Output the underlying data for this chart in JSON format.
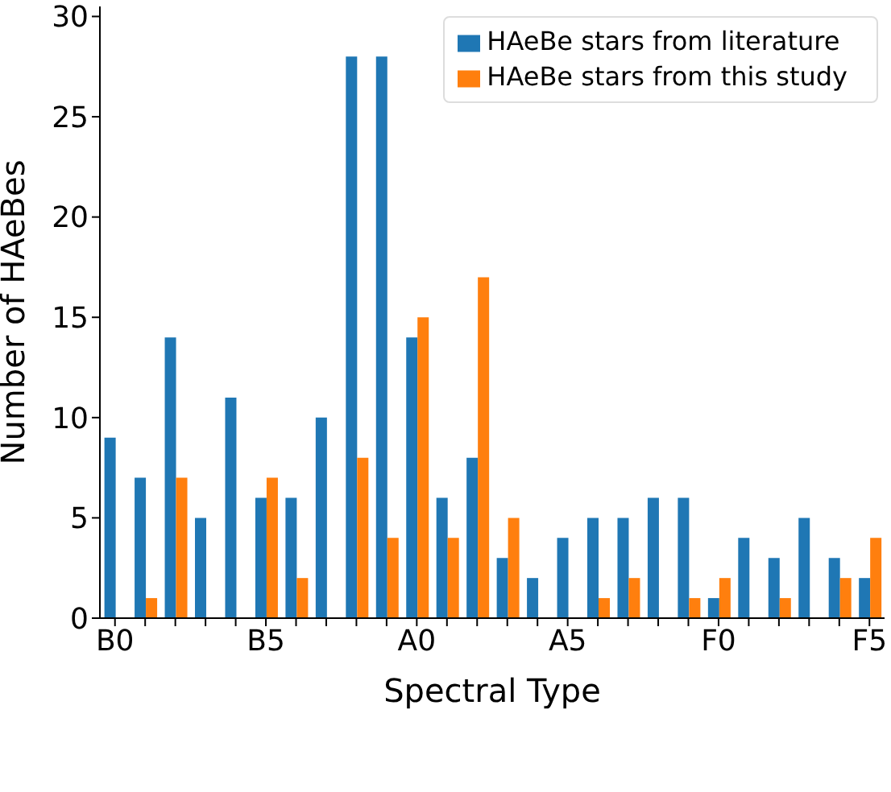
{
  "chart_data": {
    "type": "bar",
    "xlabel": "Spectral Type",
    "ylabel": "Number of HAeBes",
    "categories": [
      "B0",
      null,
      null,
      null,
      null,
      "B5",
      null,
      null,
      null,
      null,
      "A0",
      null,
      null,
      null,
      null,
      "A5",
      null,
      null,
      null,
      null,
      "F0",
      null,
      null,
      null,
      null,
      "F5"
    ],
    "series": [
      {
        "name": "HAeBe stars from literature",
        "color": "#1f77b4",
        "values": [
          9,
          7,
          14,
          5,
          11,
          6,
          6,
          10,
          28,
          28,
          14,
          6,
          8,
          3,
          2,
          4,
          5,
          5,
          6,
          6,
          1,
          4,
          3,
          5,
          3,
          2
        ]
      },
      {
        "name": "HAeBe stars from this study",
        "color": "#ff7f0e",
        "values": [
          0,
          1,
          7,
          0,
          0,
          7,
          2,
          0,
          8,
          4,
          15,
          4,
          17,
          5,
          0,
          0,
          1,
          2,
          0,
          1,
          2,
          0,
          1,
          0,
          2,
          4
        ]
      }
    ],
    "ylim": [
      0,
      30.5
    ],
    "yticks": [
      0,
      5,
      10,
      15,
      20,
      25,
      30
    ],
    "grid": false,
    "legend": "top right"
  }
}
